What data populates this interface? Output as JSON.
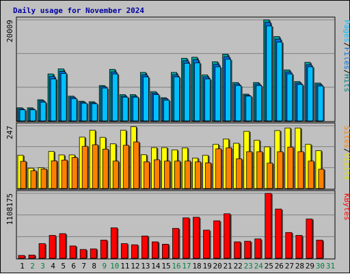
{
  "chart_data": {
    "type": "bar",
    "title": "Daily usage for November 2024",
    "categories": [
      "1",
      "2",
      "3",
      "4",
      "5",
      "6",
      "7",
      "8",
      "9",
      "10",
      "11",
      "12",
      "13",
      "14",
      "15",
      "16",
      "17",
      "18",
      "19",
      "20",
      "21",
      "22",
      "23",
      "24",
      "25",
      "26",
      "27",
      "28",
      "29",
      "30",
      "31"
    ],
    "weekend_color": "#008040",
    "weekday_color": "#000000",
    "weekend_days": [
      "2",
      "3",
      "9",
      "10",
      "16",
      "17",
      "23",
      "24",
      "30",
      "31"
    ],
    "panels": [
      {
        "id": "hits",
        "ymax_label": "20009",
        "ymax": 20009,
        "right_labels": [
          {
            "text": "Pages",
            "color": "#00c0ff"
          },
          {
            "text": "/",
            "color": "#000000"
          },
          {
            "text": "Files",
            "color": "#0070e0"
          },
          {
            "text": "/",
            "color": "#000000"
          },
          {
            "text": "Hits",
            "color": "#008080"
          }
        ],
        "series": [
          {
            "name": "Hits",
            "color": "#00a0a0",
            "values": [
              2600,
              2600,
              4200,
              9300,
              10300,
              4900,
              3900,
              3800,
              7000,
              10200,
              5200,
              5200,
              9600,
              5800,
              4600,
              9600,
              12400,
              12600,
              9100,
              11700,
              13200,
              7600,
              5300,
              7600,
              20009,
              16700,
              10100,
              7800,
              11600,
              7500,
              0
            ]
          },
          {
            "name": "Files",
            "color": "#0070e0",
            "values": [
              2400,
              2400,
              4000,
              8800,
              9800,
              4700,
              3700,
              3600,
              6800,
              9700,
              4900,
              4900,
              9100,
              5500,
              4400,
              9100,
              11900,
              12100,
              8700,
              11200,
              12700,
              7300,
              5100,
              7300,
              19500,
              16200,
              9700,
              7500,
              11100,
              7200,
              0
            ]
          },
          {
            "name": "Pages",
            "color": "#00c0ff",
            "values": [
              2200,
              2200,
              3700,
              8300,
              9400,
              4400,
              3500,
              3400,
              6500,
              9300,
              4700,
              4700,
              8700,
              5200,
              4100,
              8700,
              11400,
              11500,
              8300,
              10700,
              12200,
              7000,
              4900,
              7000,
              18800,
              15600,
              9300,
              7200,
              10700,
              6900,
              0
            ]
          }
        ]
      },
      {
        "id": "visits",
        "ymax_label": "247",
        "ymax": 247,
        "right_labels": [
          {
            "text": "Sites",
            "color": "#ff8000"
          },
          {
            "text": "/",
            "color": "#000000"
          },
          {
            "text": "Visits",
            "color": "#e0e000"
          }
        ],
        "series": [
          {
            "name": "Visits",
            "color": "#ffff00",
            "values": [
              131,
              80,
              82,
              146,
              132,
              132,
              202,
              229,
              201,
              176,
              229,
              243,
              133,
              161,
              161,
              152,
              160,
              120,
              131,
              174,
              195,
              178,
              225,
              190,
              164,
              228,
              238,
              238,
              174,
              149,
              0
            ]
          },
          {
            "name": "Sites",
            "color": "#ff8000",
            "values": [
              107,
              70,
              77,
              109,
              112,
              122,
              166,
              172,
              155,
              108,
              170,
              183,
              105,
              113,
              108,
              108,
              108,
              105,
              101,
              156,
              160,
              117,
              145,
              145,
              100,
              145,
              163,
              145,
              108,
              76,
              0
            ]
          }
        ]
      },
      {
        "id": "kbytes",
        "ymax_label": "1108175",
        "ymax": 1108175,
        "right_labels": [
          {
            "text": "KBytes",
            "color": "#ff0000"
          }
        ],
        "series": [
          {
            "name": "KBytes",
            "color": "#ff0000",
            "values": [
              48000,
              55000,
              250000,
              390000,
              420000,
              210000,
              150000,
              160000,
              310000,
              520000,
              250000,
              230000,
              380000,
              280000,
              240000,
              510000,
              690000,
              700000,
              480000,
              640000,
              760000,
              280000,
              290000,
              330000,
              1108175,
              840000,
              440000,
              390000,
              670000,
              310000,
              0
            ]
          }
        ]
      }
    ]
  }
}
